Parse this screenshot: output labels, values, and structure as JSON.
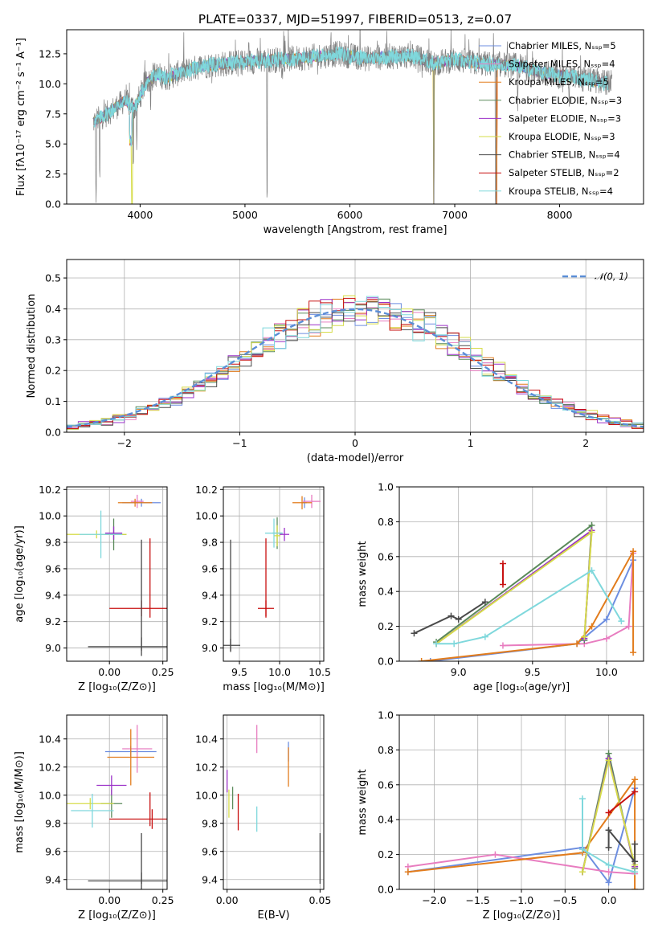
{
  "chart_data": [
    {
      "panel": "spectrum",
      "type": "line",
      "title": "PLATE=0337, MJD=51997, FIBERID=0513, z=0.07",
      "xlabel": "wavelength [Angstrom, rest frame]",
      "ylabel": "Flux [fλ10⁻¹⁷ erg cm⁻² s⁻¹ A⁻¹]",
      "xlim": [
        3300,
        8800
      ],
      "ylim": [
        0,
        14.5
      ],
      "xticks": [
        "4000",
        "5000",
        "6000",
        "7000",
        "8000"
      ],
      "yticks": [
        "0.0",
        "2.5",
        "5.0",
        "7.5",
        "10.0",
        "12.5"
      ],
      "legend_position": "right",
      "continuum": {
        "x": [
          3550,
          3700,
          3850,
          3950,
          4050,
          4150,
          4250,
          4400,
          4600,
          4850,
          5100,
          5300,
          5600,
          5900,
          6150,
          6400,
          6600,
          6800,
          7000,
          7200,
          7400,
          7600,
          7800,
          8000,
          8200,
          8450
        ],
        "y": [
          6.8,
          7.6,
          8.6,
          8.0,
          10.0,
          10.8,
          10.5,
          11.0,
          11.5,
          11.7,
          11.9,
          12.0,
          12.2,
          12.5,
          12.1,
          12.3,
          12.3,
          11.7,
          12.0,
          11.7,
          11.6,
          11.5,
          11.0,
          10.7,
          10.4,
          10.1
        ]
      },
      "series": [
        {
          "name": "Chabrier MILES, Nₛₛₚ=5",
          "color": "#6d8ee0"
        },
        {
          "name": "Salpeter MILES, Nₛₛₚ=4",
          "color": "#e87dc0"
        },
        {
          "name": "Kroupa MILES, Nₛₛₚ=5",
          "color": "#e27c1c"
        },
        {
          "name": "Chabrier ELODIE, Nₛₛₚ=3",
          "color": "#5a8a5a"
        },
        {
          "name": "Salpeter ELODIE, Nₛₛₚ=3",
          "color": "#9b30c8"
        },
        {
          "name": "Kroupa ELODIE, Nₛₛₚ=3",
          "color": "#d6dc4a"
        },
        {
          "name": "Chabrier STELIB, Nₛₛₚ=4",
          "color": "#4a4a4a"
        },
        {
          "name": "Salpeter STELIB, Nₛₛₚ=2",
          "color": "#c81010"
        },
        {
          "name": "Kroupa STELIB, Nₛₛₚ=4",
          "color": "#7fd8dc"
        }
      ]
    },
    {
      "panel": "residuals",
      "type": "line",
      "xlabel": "(data-model)/error",
      "ylabel": "Normed distribution",
      "xlim": [
        -2.5,
        2.5
      ],
      "ylim": [
        0,
        0.56
      ],
      "xticks": [
        "−2",
        "−1",
        "0",
        "1",
        "2"
      ],
      "yticks": [
        "0.0",
        "0.1",
        "0.2",
        "0.3",
        "0.4",
        "0.5"
      ],
      "legend_position": "top-right",
      "reference_label": "𝒩(0, 1)",
      "reference_color": "#5b8ed6",
      "bin_width": 0.1
    },
    {
      "panel": "age-vs-Z",
      "type": "scatter",
      "xlabel": "Z [log₁₀(Z/Z⊙)]",
      "ylabel": "age  [log₁₀(age/yr)]",
      "xlim": [
        -0.2,
        0.27
      ],
      "ylim": [
        8.9,
        10.22
      ],
      "xticks": [
        "0.00",
        "0.25"
      ],
      "yticks": [
        "9.0",
        "9.2",
        "9.4",
        "9.6",
        "9.8",
        "10.0",
        "10.2"
      ],
      "points": [
        {
          "s": 0,
          "x": 0.15,
          "xe": 0.09,
          "y": 10.1,
          "ye": 0.03
        },
        {
          "s": 1,
          "x": 0.13,
          "xe": 0.03,
          "y": 10.11,
          "ye": 0.05
        },
        {
          "s": 2,
          "x": 0.12,
          "xe": 0.08,
          "y": 10.1,
          "ye": 0.03
        },
        {
          "s": 3,
          "x": 0.02,
          "xe": 0.06,
          "y": 9.86,
          "ye": 0.12
        },
        {
          "s": 4,
          "x": 0.02,
          "xe": 0.04,
          "y": 9.87,
          "ye": 0.05
        },
        {
          "s": 5,
          "x": -0.06,
          "xe": 0.14,
          "y": 9.86,
          "ye": 0.03
        },
        {
          "s": 6,
          "x": 0.15,
          "xe": 0.25,
          "y": 9.01,
          "ye": 0.07
        },
        {
          "s": 7,
          "x": 0.15,
          "xe": 0.15,
          "y": 9.3,
          "ye": 0.06
        },
        {
          "s": 8,
          "x": -0.04,
          "xe": 0.1,
          "y": 9.86,
          "ye": 0.18
        },
        {
          "s": 6,
          "x": 0.15,
          "xe": 0.0,
          "y": 9.4,
          "ye": 0.42
        },
        {
          "s": 7,
          "x": 0.19,
          "xe": 0.0,
          "y": 9.53,
          "ye": 0.3
        }
      ]
    },
    {
      "panel": "age-vs-mass",
      "type": "scatter",
      "xlabel": "mass [log₁₀(M/M⊙)]",
      "ylabel": "",
      "xlim": [
        9.3,
        10.55
      ],
      "ylim": [
        8.9,
        10.22
      ],
      "xticks": [
        "9.5",
        "10.0",
        "10.5"
      ],
      "yticks": [
        "9.0",
        "9.2",
        "9.4",
        "9.6",
        "9.8",
        "10.0",
        "10.2"
      ],
      "points": [
        {
          "s": 0,
          "x": 10.31,
          "xe": 0.03,
          "y": 10.1,
          "ye": 0.04
        },
        {
          "s": 1,
          "x": 10.4,
          "xe": 0.11,
          "y": 10.11,
          "ye": 0.05
        },
        {
          "s": 2,
          "x": 10.28,
          "xe": 0.12,
          "y": 10.1,
          "ye": 0.05
        },
        {
          "s": 3,
          "x": 9.97,
          "xe": 0.06,
          "y": 9.87,
          "ye": 0.12
        },
        {
          "s": 4,
          "x": 10.06,
          "xe": 0.06,
          "y": 9.86,
          "ye": 0.05
        },
        {
          "s": 5,
          "x": 9.97,
          "xe": 0.04,
          "y": 9.85,
          "ye": 0.08
        },
        {
          "s": 6,
          "x": 9.39,
          "xe": 0.12,
          "y": 9.02,
          "ye": 0.05
        },
        {
          "s": 6,
          "x": 9.39,
          "xe": 0.0,
          "y": 9.4,
          "ye": 0.42
        },
        {
          "s": 7,
          "x": 9.83,
          "xe": 0.1,
          "y": 9.3,
          "ye": 0.06
        },
        {
          "s": 7,
          "x": 9.83,
          "xe": 0.0,
          "y": 9.53,
          "ye": 0.3
        },
        {
          "s": 8,
          "x": 9.93,
          "xe": 0.11,
          "y": 9.87,
          "ye": 0.11
        }
      ]
    },
    {
      "panel": "weight-vs-age",
      "type": "line",
      "xlabel": "age  [log₁₀(age/yr)]",
      "ylabel": "mass weight",
      "xlim": [
        8.6,
        10.25
      ],
      "ylim": [
        0,
        1
      ],
      "xticks": [
        "9.0",
        "9.5",
        "10.0"
      ],
      "yticks": [
        "0.0",
        "0.2",
        "0.4",
        "0.6",
        "0.8",
        "1.0"
      ],
      "series": [
        {
          "s": 0,
          "x": [
            8.81,
            9.8,
            10.0,
            10.18
          ],
          "y": [
            0.0,
            0.1,
            0.24,
            0.58
          ]
        },
        {
          "s": 1,
          "x": [
            9.3,
            9.85,
            10.0,
            10.15,
            10.18
          ],
          "y": [
            0.09,
            0.1,
            0.13,
            0.2,
            0.62
          ]
        },
        {
          "s": 2,
          "x": [
            8.75,
            9.8,
            9.9,
            10.18,
            10.18
          ],
          "y": [
            0.0,
            0.1,
            0.2,
            0.63,
            0.05
          ]
        },
        {
          "s": 3,
          "x": [
            8.85,
            9.9,
            9.85
          ],
          "y": [
            0.11,
            0.78,
            0.12
          ]
        },
        {
          "s": 4,
          "x": [
            8.85,
            9.9,
            9.85
          ],
          "y": [
            0.1,
            0.75,
            0.13
          ]
        },
        {
          "s": 5,
          "x": [
            8.85,
            9.9,
            9.85
          ],
          "y": [
            0.1,
            0.74,
            0.14
          ]
        },
        {
          "s": 6,
          "x": [
            8.7,
            8.95,
            9.0,
            9.18
          ],
          "y": [
            0.16,
            0.26,
            0.24,
            0.34
          ]
        },
        {
          "s": 7,
          "x": [
            9.3,
            9.3
          ],
          "y": [
            0.44,
            0.56
          ]
        },
        {
          "s": 8,
          "x": [
            8.85,
            8.97,
            9.18,
            9.9,
            10.1
          ],
          "y": [
            0.1,
            0.1,
            0.14,
            0.52,
            0.23
          ]
        }
      ]
    },
    {
      "panel": "mass-vs-Z",
      "type": "scatter",
      "xlabel": "Z [log₁₀(Z/Z⊙)]",
      "ylabel": "mass [log₁₀(M/M⊙)]",
      "xlim": [
        -0.2,
        0.27
      ],
      "ylim": [
        9.33,
        10.57
      ],
      "xticks": [
        "0.00",
        "0.25"
      ],
      "yticks": [
        "9.4",
        "9.6",
        "9.8",
        "10.0",
        "10.2",
        "10.4"
      ],
      "points": [
        {
          "s": 0,
          "x": 0.1,
          "xe": 0.12,
          "y": 10.31,
          "ye": 0.04
        },
        {
          "s": 1,
          "x": 0.13,
          "xe": 0.07,
          "y": 10.33,
          "ye": 0.17
        },
        {
          "s": 2,
          "x": 0.1,
          "xe": 0.11,
          "y": 10.27,
          "ye": 0.2
        },
        {
          "s": 3,
          "x": 0.01,
          "xe": 0.05,
          "y": 9.94,
          "ye": 0.1
        },
        {
          "s": 4,
          "x": 0.01,
          "xe": 0.07,
          "y": 10.07,
          "ye": 0.07
        },
        {
          "s": 5,
          "x": -0.09,
          "xe": 0.11,
          "y": 9.94,
          "ye": 0.04
        },
        {
          "s": 6,
          "x": 0.15,
          "xe": 0.25,
          "y": 9.39,
          "ye": 0.06
        },
        {
          "s": 6,
          "x": 0.15,
          "xe": 0.0,
          "y": 9.55,
          "ye": 0.18
        },
        {
          "s": 7,
          "x": 0.2,
          "xe": 0.2,
          "y": 9.83,
          "ye": 0.07
        },
        {
          "s": 7,
          "x": 0.19,
          "xe": 0.0,
          "y": 9.9,
          "ye": 0.12
        },
        {
          "s": 8,
          "x": -0.08,
          "xe": 0.1,
          "y": 9.89,
          "ye": 0.12
        }
      ]
    },
    {
      "panel": "mass-vs-EBV",
      "type": "scatter",
      "xlabel": "E(B-V)",
      "ylabel": "",
      "xlim": [
        -0.002,
        0.052
      ],
      "ylim": [
        9.33,
        10.57
      ],
      "xticks": [
        "0.00",
        "0.05"
      ],
      "yticks": [
        "9.4",
        "9.6",
        "9.8",
        "10.0",
        "10.2",
        "10.4"
      ],
      "points": [
        {
          "s": 0,
          "x": 0.033,
          "xe": 0.0,
          "y": 10.31,
          "ye": 0.07
        },
        {
          "s": 1,
          "x": 0.016,
          "xe": 0.0,
          "y": 10.4,
          "ye": 0.1
        },
        {
          "s": 2,
          "x": 0.033,
          "xe": 0.0,
          "y": 10.2,
          "ye": 0.14
        },
        {
          "s": 3,
          "x": 0.003,
          "xe": 0.0,
          "y": 9.98,
          "ye": 0.08
        },
        {
          "s": 4,
          "x": 0.0,
          "xe": 0.0,
          "y": 10.1,
          "ye": 0.08
        },
        {
          "s": 5,
          "x": 0.001,
          "xe": 0.0,
          "y": 9.94,
          "ye": 0.1
        },
        {
          "s": 6,
          "x": 0.05,
          "xe": 0.0,
          "y": 9.55,
          "ye": 0.18
        },
        {
          "s": 7,
          "x": 0.006,
          "xe": 0.0,
          "y": 9.88,
          "ye": 0.13
        },
        {
          "s": 8,
          "x": 0.016,
          "xe": 0.0,
          "y": 9.83,
          "ye": 0.09
        }
      ]
    },
    {
      "panel": "weight-vs-Z",
      "type": "line",
      "xlabel": "Z [log₁₀(Z/Z⊙)]",
      "ylabel": "mass weight",
      "xlim": [
        -2.4,
        0.4
      ],
      "ylim": [
        0,
        1
      ],
      "xticks": [
        "−2.0",
        "−1.5",
        "−1.0",
        "−0.5",
        "0.0"
      ],
      "yticks": [
        "0.0",
        "0.2",
        "0.4",
        "0.6",
        "0.8",
        "1.0"
      ],
      "series": [
        {
          "s": 0,
          "x": [
            -2.3,
            -0.3,
            0.0,
            0.3
          ],
          "y": [
            0.1,
            0.24,
            0.04,
            0.58
          ]
        },
        {
          "s": 1,
          "x": [
            -2.3,
            -1.3,
            0.0,
            0.3
          ],
          "y": [
            0.13,
            0.2,
            0.1,
            0.09
          ]
        },
        {
          "s": 2,
          "x": [
            -2.3,
            -0.3,
            0.3,
            0.3
          ],
          "y": [
            0.1,
            0.21,
            0.63,
            0.0
          ]
        },
        {
          "s": 3,
          "x": [
            -0.3,
            0.0,
            0.3
          ],
          "y": [
            0.1,
            0.78,
            0.12
          ]
        },
        {
          "s": 4,
          "x": [
            -0.3,
            0.0,
            0.3
          ],
          "y": [
            0.1,
            0.75,
            0.13
          ]
        },
        {
          "s": 5,
          "x": [
            -0.3,
            0.0,
            0.3
          ],
          "y": [
            0.1,
            0.74,
            0.14
          ]
        },
        {
          "s": 6,
          "x": [
            0.0,
            0.0,
            0.3,
            0.3
          ],
          "y": [
            0.24,
            0.34,
            0.16,
            0.26
          ]
        },
        {
          "s": 7,
          "x": [
            0.0,
            0.3
          ],
          "y": [
            0.44,
            0.56
          ]
        },
        {
          "s": 8,
          "x": [
            -0.3,
            -0.3,
            0.0,
            0.3
          ],
          "y": [
            0.52,
            0.23,
            0.14,
            0.1
          ]
        }
      ]
    }
  ]
}
